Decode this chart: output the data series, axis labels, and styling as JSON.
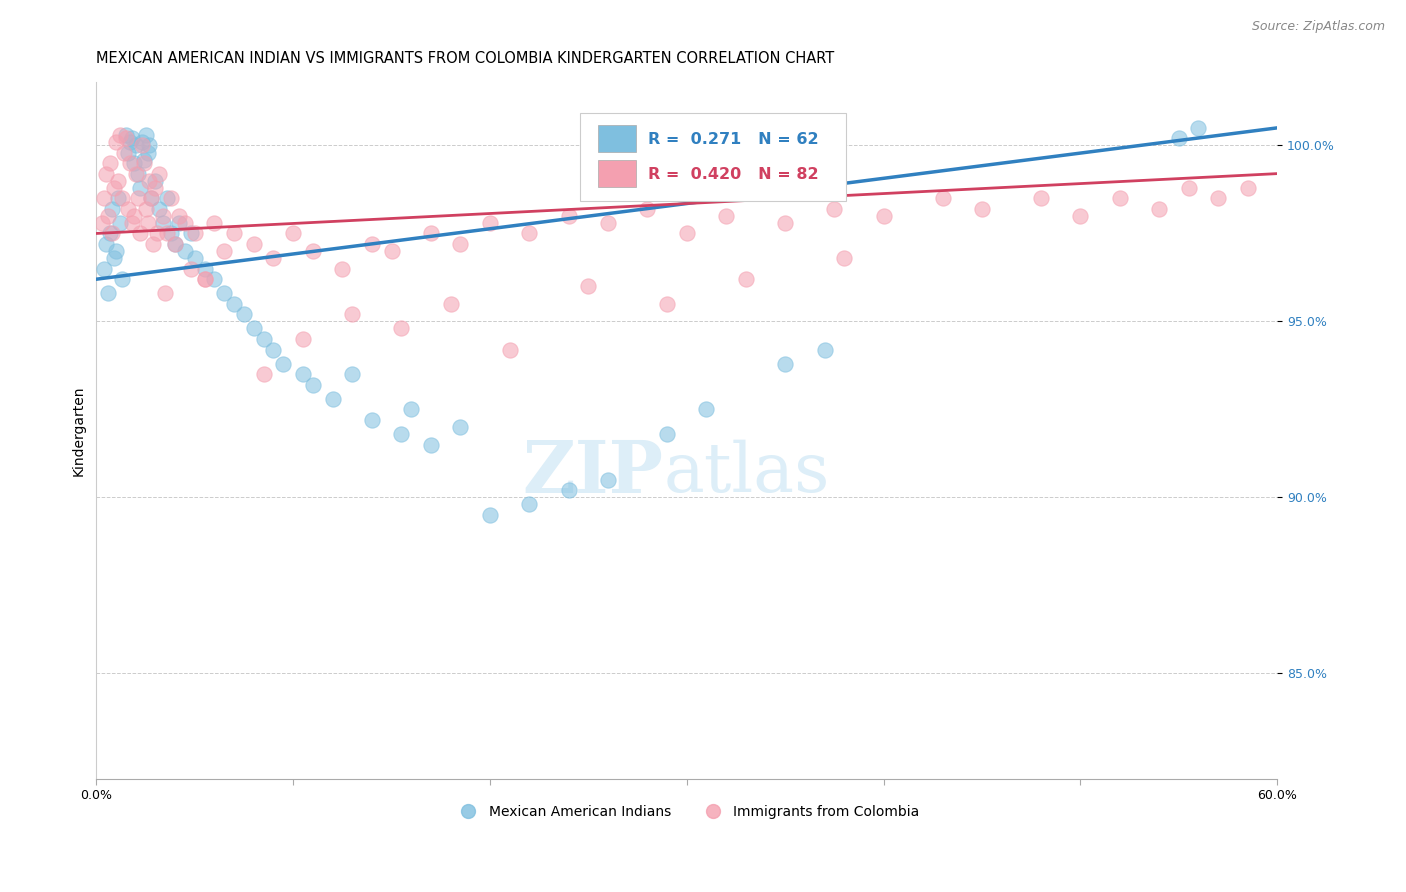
{
  "title": "MEXICAN AMERICAN INDIAN VS IMMIGRANTS FROM COLOMBIA KINDERGARTEN CORRELATION CHART",
  "source": "Source: ZipAtlas.com",
  "ylabel": "Kindergarten",
  "legend_blue_label": "Mexican American Indians",
  "legend_pink_label": "Immigrants from Colombia",
  "legend_blue_R": "0.271",
  "legend_blue_N": "62",
  "legend_pink_R": "0.420",
  "legend_pink_N": "82",
  "blue_color": "#7fbfdf",
  "pink_color": "#f4a0b0",
  "blue_line_color": "#3080c0",
  "pink_line_color": "#d04060",
  "background_color": "#ffffff",
  "watermark_color": "#ddeef8",
  "xmin": 0.0,
  "xmax": 60.0,
  "ymin": 82.0,
  "ymax": 101.8,
  "yticks": [
    100.0,
    95.0,
    90.0,
    85.0
  ],
  "xtick_positions": [
    0.0,
    10.0,
    20.0,
    30.0,
    40.0,
    50.0,
    60.0
  ],
  "blue_points_x": [
    0.4,
    0.5,
    0.6,
    0.7,
    0.8,
    0.9,
    1.0,
    1.1,
    1.2,
    1.3,
    1.5,
    1.6,
    1.7,
    1.8,
    1.9,
    2.0,
    2.1,
    2.2,
    2.3,
    2.4,
    2.5,
    2.6,
    2.7,
    2.8,
    3.0,
    3.2,
    3.4,
    3.6,
    3.8,
    4.0,
    4.2,
    4.5,
    4.8,
    5.0,
    5.5,
    6.0,
    6.5,
    7.0,
    7.5,
    8.0,
    8.5,
    9.0,
    9.5,
    10.5,
    11.0,
    12.0,
    13.0,
    14.0,
    15.5,
    16.0,
    17.0,
    18.5,
    20.0,
    22.0,
    24.0,
    26.0,
    29.0,
    31.0,
    35.0,
    37.0,
    55.0,
    56.0
  ],
  "blue_points_y": [
    96.5,
    97.2,
    95.8,
    97.5,
    98.2,
    96.8,
    97.0,
    98.5,
    97.8,
    96.2,
    100.3,
    99.8,
    100.1,
    100.2,
    99.5,
    100.0,
    99.2,
    98.8,
    100.1,
    99.6,
    100.3,
    99.8,
    100.0,
    98.5,
    99.0,
    98.2,
    97.8,
    98.5,
    97.5,
    97.2,
    97.8,
    97.0,
    97.5,
    96.8,
    96.5,
    96.2,
    95.8,
    95.5,
    95.2,
    94.8,
    94.5,
    94.2,
    93.8,
    93.5,
    93.2,
    92.8,
    93.5,
    92.2,
    91.8,
    92.5,
    91.5,
    92.0,
    89.5,
    89.8,
    90.2,
    90.5,
    91.8,
    92.5,
    93.8,
    94.2,
    100.2,
    100.5
  ],
  "pink_points_x": [
    0.3,
    0.4,
    0.5,
    0.6,
    0.7,
    0.8,
    0.9,
    1.0,
    1.1,
    1.2,
    1.3,
    1.4,
    1.5,
    1.6,
    1.7,
    1.8,
    1.9,
    2.0,
    2.1,
    2.2,
    2.3,
    2.4,
    2.5,
    2.6,
    2.7,
    2.8,
    2.9,
    3.0,
    3.1,
    3.2,
    3.4,
    3.6,
    3.8,
    4.0,
    4.2,
    4.5,
    4.8,
    5.0,
    5.5,
    6.0,
    6.5,
    7.0,
    8.0,
    9.0,
    10.0,
    11.0,
    12.5,
    14.0,
    15.0,
    17.0,
    18.5,
    20.0,
    22.0,
    24.0,
    26.0,
    28.0,
    30.0,
    32.0,
    35.0,
    37.5,
    40.0,
    43.0,
    45.0,
    48.0,
    50.0,
    52.0,
    54.0,
    55.5,
    57.0,
    58.5,
    3.5,
    5.5,
    8.5,
    10.5,
    13.0,
    15.5,
    18.0,
    21.0,
    25.0,
    29.0,
    33.0,
    38.0
  ],
  "pink_points_y": [
    97.8,
    98.5,
    99.2,
    98.0,
    99.5,
    97.5,
    98.8,
    100.1,
    99.0,
    100.3,
    98.5,
    99.8,
    100.2,
    98.2,
    99.5,
    97.8,
    98.0,
    99.2,
    98.5,
    97.5,
    100.0,
    99.5,
    98.2,
    97.8,
    99.0,
    98.5,
    97.2,
    98.8,
    97.5,
    99.2,
    98.0,
    97.5,
    98.5,
    97.2,
    98.0,
    97.8,
    96.5,
    97.5,
    96.2,
    97.8,
    97.0,
    97.5,
    97.2,
    96.8,
    97.5,
    97.0,
    96.5,
    97.2,
    97.0,
    97.5,
    97.2,
    97.8,
    97.5,
    98.0,
    97.8,
    98.2,
    97.5,
    98.0,
    97.8,
    98.2,
    98.0,
    98.5,
    98.2,
    98.5,
    98.0,
    98.5,
    98.2,
    98.8,
    98.5,
    98.8,
    95.8,
    96.2,
    93.5,
    94.5,
    95.2,
    94.8,
    95.5,
    94.2,
    96.0,
    95.5,
    96.2,
    96.8
  ],
  "blue_trend_x": [
    0.0,
    60.0
  ],
  "blue_trend_y": [
    96.2,
    100.5
  ],
  "pink_trend_x": [
    0.0,
    60.0
  ],
  "pink_trend_y": [
    97.5,
    99.2
  ],
  "title_fontsize": 10.5,
  "axis_label_fontsize": 10,
  "tick_fontsize": 9,
  "source_fontsize": 9,
  "watermark_fontsize": 52,
  "marker_size": 11
}
